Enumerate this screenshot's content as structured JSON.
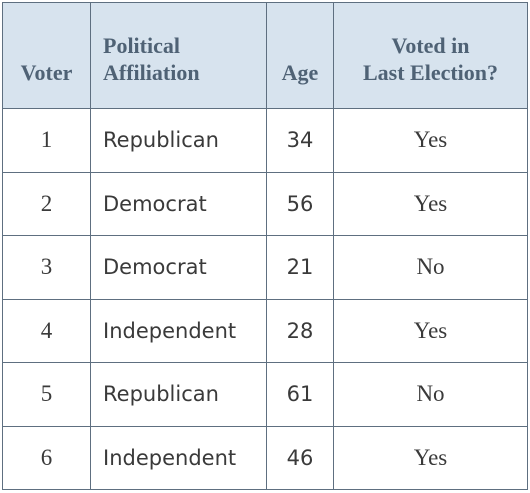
{
  "table": {
    "headers": {
      "voter": "Voter",
      "affiliation_line1": "Political",
      "affiliation_line2": "Affiliation",
      "age": "Age",
      "voted_line1": "Voted in",
      "voted_line2": "Last Election?"
    },
    "rows": [
      {
        "voter": "1",
        "affiliation": "Republican",
        "age": "34",
        "voted": "Yes"
      },
      {
        "voter": "2",
        "affiliation": "Democrat",
        "age": "56",
        "voted": "Yes"
      },
      {
        "voter": "3",
        "affiliation": "Democrat",
        "age": "21",
        "voted": "No"
      },
      {
        "voter": "4",
        "affiliation": "Independent",
        "age": "28",
        "voted": "Yes"
      },
      {
        "voter": "5",
        "affiliation": "Republican",
        "age": "61",
        "voted": "No"
      },
      {
        "voter": "6",
        "affiliation": "Independent",
        "age": "46",
        "voted": "Yes"
      }
    ]
  },
  "colors": {
    "header_background": "#d7e3ee",
    "header_text": "#4f6275",
    "border": "#5e6f80",
    "body_text": "#3a3a3a"
  }
}
